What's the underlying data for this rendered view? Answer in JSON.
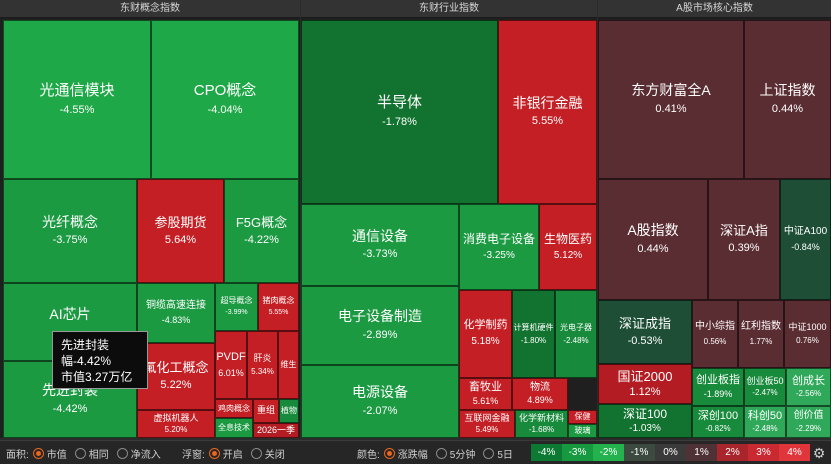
{
  "panels": [
    {
      "title": "东财概念指数"
    },
    {
      "title": "东财行业指数"
    },
    {
      "title": "A股市场核心指数"
    }
  ],
  "tiles": [
    {
      "name": "光通信模块",
      "pct": "-4.55%"
    },
    {
      "name": "CPO概念",
      "pct": "-4.04%"
    },
    {
      "name": "光纤概念",
      "pct": "-3.75%"
    },
    {
      "name": "参股期货",
      "pct": "5.64%"
    },
    {
      "name": "F5G概念",
      "pct": "-4.22%"
    },
    {
      "name": "AI芯片",
      "pct": ""
    },
    {
      "name": "铜缆高速连接",
      "pct": "-4.83%"
    },
    {
      "name": "超导概念",
      "pct": "-3.99%"
    },
    {
      "name": "猪肉概念",
      "pct": "5.55%"
    },
    {
      "name": "先进封装",
      "pct": "-4.42%"
    },
    {
      "name": "氟化工概念",
      "pct": "5.22%"
    },
    {
      "name": "PVDF",
      "pct": "6.01%"
    },
    {
      "name": "肝炎",
      "pct": "5.34%"
    },
    {
      "name": "维生",
      "pct": ""
    },
    {
      "name": "虚拟机器人",
      "pct": "5.20%"
    },
    {
      "name": "鸡肉概念",
      "pct": ""
    },
    {
      "name": "全息技术",
      "pct": ""
    },
    {
      "name": "重组",
      "pct": ""
    },
    {
      "name": "2026一季",
      "pct": ""
    },
    {
      "name": "植物",
      "pct": ""
    },
    {
      "name": "半导体",
      "pct": "-1.78%"
    },
    {
      "name": "非银行金融",
      "pct": "5.55%"
    },
    {
      "name": "通信设备",
      "pct": "-3.73%"
    },
    {
      "name": "消费电子设备",
      "pct": "-3.25%"
    },
    {
      "name": "生物医药",
      "pct": "5.12%"
    },
    {
      "name": "电子设备制造",
      "pct": "-2.89%"
    },
    {
      "name": "化学制药",
      "pct": "5.18%"
    },
    {
      "name": "计算机硬件",
      "pct": "-1.80%"
    },
    {
      "name": "光电子器",
      "pct": "-2.48%"
    },
    {
      "name": "电源设备",
      "pct": "-2.07%"
    },
    {
      "name": "畜牧业",
      "pct": "5.61%"
    },
    {
      "name": "物流",
      "pct": "4.89%"
    },
    {
      "name": "互联网金融",
      "pct": "5.49%"
    },
    {
      "name": "化学新材料",
      "pct": "-1.68%"
    },
    {
      "name": "保健",
      "pct": ""
    },
    {
      "name": "玻璃",
      "pct": ""
    },
    {
      "name": "东方财富全A",
      "pct": "0.41%"
    },
    {
      "name": "上证指数",
      "pct": "0.44%"
    },
    {
      "name": "A股指数",
      "pct": "0.44%"
    },
    {
      "name": "深证A指",
      "pct": "0.39%"
    },
    {
      "name": "中证A100",
      "pct": "-0.84%"
    },
    {
      "name": "深证成指",
      "pct": "-0.53%"
    },
    {
      "name": "中小综指",
      "pct": "0.56%"
    },
    {
      "name": "红利指数",
      "pct": "1.77%"
    },
    {
      "name": "中证1000",
      "pct": "0.76%"
    },
    {
      "name": "国证2000",
      "pct": "1.12%"
    },
    {
      "name": "创业板指",
      "pct": "-1.89%"
    },
    {
      "name": "创业板50",
      "pct": "-2.47%"
    },
    {
      "name": "创成长",
      "pct": "-2.56%"
    },
    {
      "name": "深证100",
      "pct": "-1.03%"
    },
    {
      "name": "深创100",
      "pct": "-0.82%"
    },
    {
      "name": "科创50",
      "pct": "-2.48%"
    },
    {
      "name": "创价值",
      "pct": "-2.29%"
    }
  ],
  "tooltip": {
    "name": "先进封装",
    "line2": "幅-4.42%",
    "line3": "市值3.27万亿"
  },
  "bottom": {
    "area_label": "面积:",
    "area_options": [
      "市值",
      "相同",
      "净流入"
    ],
    "float_label": "浮窗:",
    "float_options": [
      "开启",
      "关闭"
    ],
    "color_label": "颜色:",
    "color_options": [
      "涨跌幅",
      "5分钟",
      "5日"
    ],
    "legend": [
      "-4%",
      "-3%",
      "-2%",
      "-1%",
      "0%",
      "1%",
      "2%",
      "3%",
      "4%"
    ],
    "legend_colors": [
      "#0d7a33",
      "#179a3f",
      "#24b24f",
      "#3c4a40",
      "#3a3a3a",
      "#4e3236",
      "#a8252b",
      "#c92a31",
      "#e0353a"
    ],
    "selected_area": "市值",
    "selected_float": "开启",
    "selected_color": "涨跌幅"
  },
  "colors": {
    "up": "#c41f25",
    "down": "#1b9a42",
    "selected_radio": "#e8661d"
  }
}
